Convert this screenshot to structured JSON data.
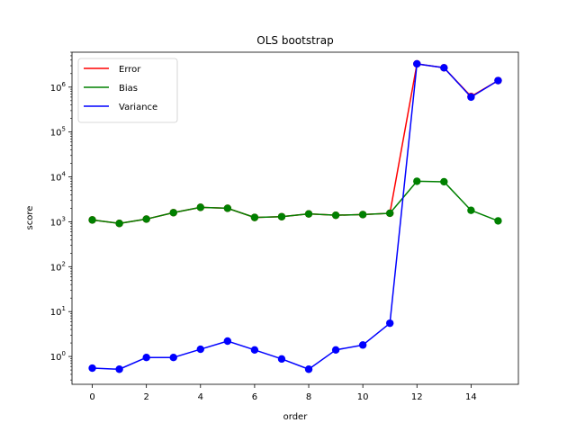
{
  "chart_data": {
    "type": "line",
    "title": "OLS bootstrap",
    "xlabel": "order",
    "ylabel": "score",
    "x": [
      0,
      1,
      2,
      3,
      4,
      5,
      6,
      7,
      8,
      9,
      10,
      11,
      12,
      13,
      14,
      15
    ],
    "xlim": [
      -0.75,
      15.75
    ],
    "xticks": [
      0,
      2,
      4,
      6,
      8,
      10,
      12,
      14
    ],
    "yscale": "log",
    "ylim": [
      0.24,
      6000000
    ],
    "yticks": [
      {
        "value": 1,
        "base": "10",
        "exp": "0"
      },
      {
        "value": 10,
        "base": "10",
        "exp": "1"
      },
      {
        "value": 100,
        "base": "10",
        "exp": "2"
      },
      {
        "value": 1000,
        "base": "10",
        "exp": "3"
      },
      {
        "value": 10000,
        "base": "10",
        "exp": "4"
      },
      {
        "value": 100000,
        "base": "10",
        "exp": "5"
      },
      {
        "value": 1000000,
        "base": "10",
        "exp": "6"
      }
    ],
    "grid": false,
    "legend_position": "top-left",
    "series": [
      {
        "name": "Error",
        "color": "#ff0000",
        "values": [
          1100,
          920,
          1150,
          1600,
          2100,
          2000,
          1250,
          1300,
          1500,
          1400,
          1450,
          1550,
          3300000,
          2700000,
          620000,
          1400000
        ]
      },
      {
        "name": "Bias",
        "color": "#008000",
        "values": [
          1100,
          920,
          1150,
          1600,
          2100,
          2000,
          1250,
          1300,
          1500,
          1400,
          1450,
          1550,
          8000,
          7800,
          1800,
          1050
        ]
      },
      {
        "name": "Variance",
        "color": "#0000ff",
        "values": [
          0.55,
          0.52,
          0.95,
          0.95,
          1.45,
          2.2,
          1.4,
          0.88,
          0.52,
          1.4,
          1.8,
          5.5,
          3300000,
          2700000,
          600000,
          1400000
        ]
      }
    ]
  }
}
